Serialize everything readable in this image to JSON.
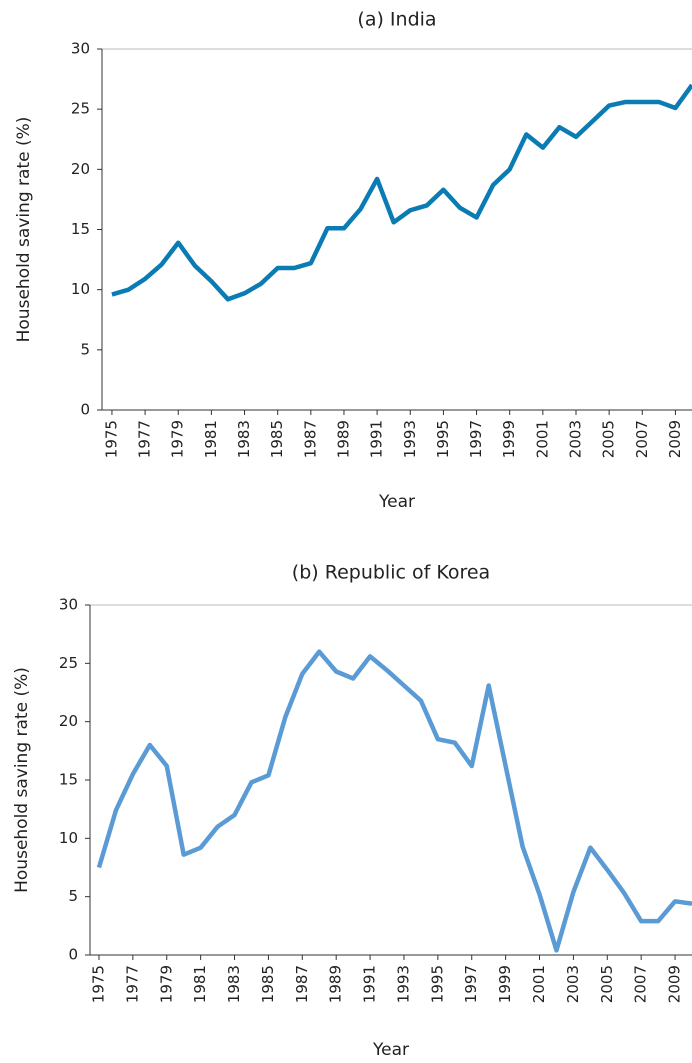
{
  "chart_data": [
    {
      "type": "line",
      "title": "(a) India",
      "y_label": "Household saving rate (%)",
      "x_label": "Year",
      "x": [
        1975,
        1976,
        1977,
        1978,
        1979,
        1980,
        1981,
        1982,
        1983,
        1984,
        1985,
        1986,
        1987,
        1988,
        1989,
        1990,
        1991,
        1992,
        1993,
        1994,
        1995,
        1996,
        1997,
        1998,
        1999,
        2000,
        2001,
        2002,
        2003,
        2004,
        2005,
        2006,
        2007,
        2008,
        2009,
        2010
      ],
      "series": [
        {
          "name": "India",
          "color": "#0b7bb4",
          "values": [
            9.6,
            10.0,
            10.9,
            12.1,
            13.9,
            12.0,
            10.7,
            9.2,
            9.7,
            10.5,
            11.8,
            11.8,
            12.2,
            15.1,
            15.1,
            16.7,
            19.2,
            15.6,
            16.6,
            17.0,
            18.3,
            16.8,
            16.0,
            18.7,
            20.0,
            22.9,
            21.8,
            23.5,
            22.7,
            24.0,
            25.3,
            25.6,
            25.6,
            25.6,
            25.1,
            27.0
          ]
        }
      ],
      "xlim": [
        1974.4,
        2010
      ],
      "xticks": [
        1975,
        1977,
        1979,
        1981,
        1983,
        1985,
        1987,
        1989,
        1991,
        1993,
        1995,
        1997,
        1999,
        2001,
        2003,
        2005,
        2007,
        2009
      ],
      "ylim": [
        0,
        30
      ],
      "yticks": [
        0,
        5,
        10,
        15,
        20,
        25,
        30
      ]
    },
    {
      "type": "line",
      "title": "(b) Republic of Korea",
      "y_label": "Household saving rate (%)",
      "x_label": "Year",
      "x": [
        1975,
        1976,
        1977,
        1978,
        1979,
        1980,
        1981,
        1982,
        1983,
        1984,
        1985,
        1986,
        1987,
        1988,
        1989,
        1990,
        1991,
        1992,
        1993,
        1994,
        1995,
        1996,
        1997,
        1998,
        1999,
        2000,
        2001,
        2002,
        2003,
        2004,
        2005,
        2006,
        2007,
        2008,
        2009,
        2010
      ],
      "series": [
        {
          "name": "Republic of Korea",
          "color": "#5b9bd5",
          "values": [
            7.5,
            12.4,
            15.5,
            18.0,
            16.2,
            8.6,
            9.2,
            11.0,
            12.0,
            14.8,
            15.4,
            20.4,
            24.1,
            26.0,
            24.3,
            23.7,
            25.6,
            24.4,
            23.1,
            21.8,
            18.5,
            18.2,
            16.2,
            23.1,
            16.2,
            9.3,
            5.2,
            0.4,
            5.4,
            9.2,
            7.3,
            5.3,
            2.9,
            2.9,
            4.6,
            4.4
          ]
        }
      ],
      "xlim": [
        1974.47,
        2010
      ],
      "xticks": [
        1975,
        1977,
        1979,
        1981,
        1983,
        1985,
        1987,
        1989,
        1991,
        1993,
        1995,
        1997,
        1999,
        2001,
        2003,
        2005,
        2007,
        2009
      ],
      "ylim": [
        0,
        30
      ],
      "yticks": [
        0,
        5,
        10,
        15,
        20,
        25,
        30
      ]
    }
  ]
}
